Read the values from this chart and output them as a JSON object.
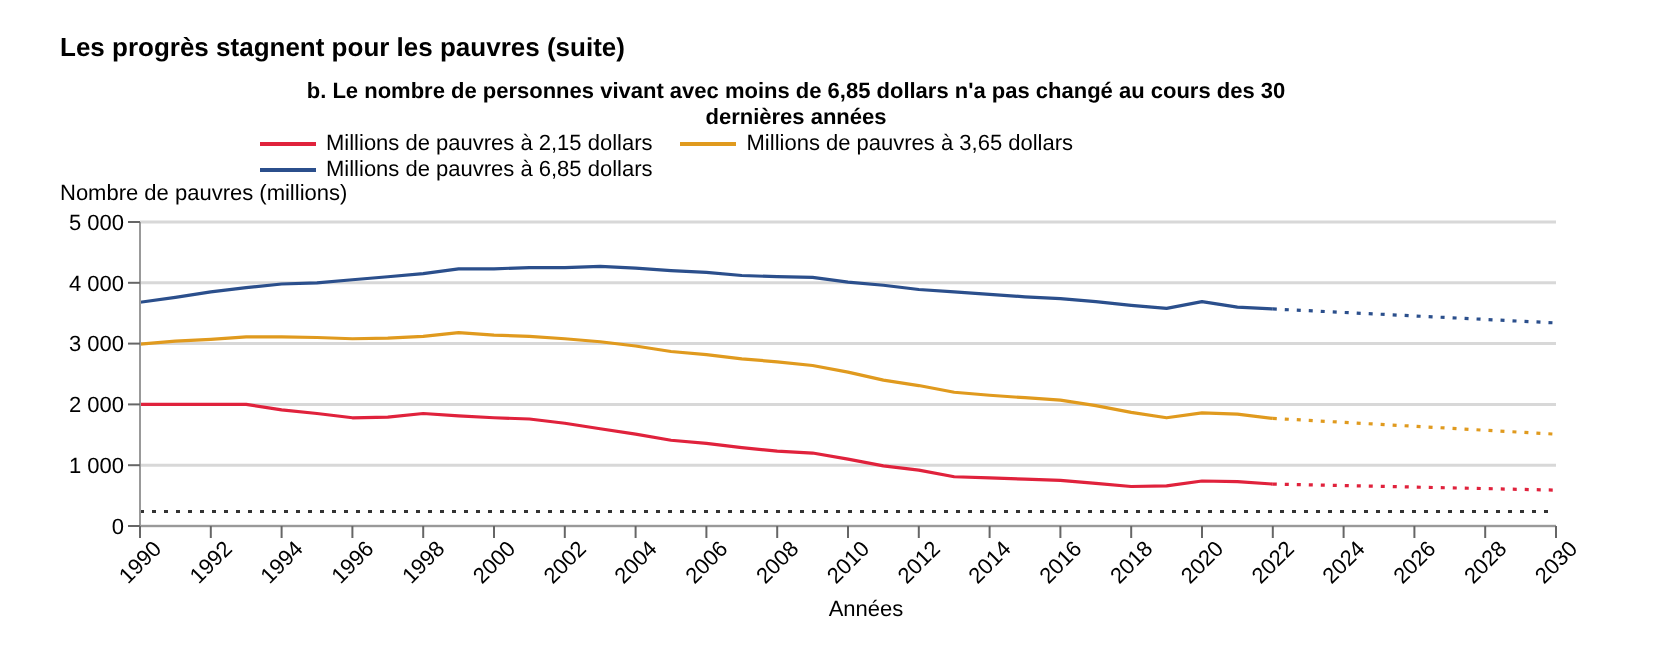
{
  "chart_data": {
    "type": "line",
    "title": "Les progrès stagnent pour les pauvres (suite)",
    "subtitle": "b. Le nombre de personnes vivant avec moins de 6,85 dollars n'a pas changé au cours des 30 dernières années",
    "xlabel": "Années",
    "ylabel": "Nombre de pauvres (millions)",
    "xlim": [
      1990,
      2030
    ],
    "xticks": [
      1990,
      1992,
      1994,
      1996,
      1998,
      2000,
      2002,
      2004,
      2006,
      2008,
      2010,
      2012,
      2014,
      2016,
      2018,
      2020,
      2022,
      2024,
      2026,
      2028,
      2030
    ],
    "ylim": [
      0,
      5000
    ],
    "yticks": [
      {
        "value": 0,
        "label": "0"
      },
      {
        "value": 1000,
        "label": "1 000"
      },
      {
        "value": 2000,
        "label": "2 000"
      },
      {
        "value": 3000,
        "label": "3 000"
      },
      {
        "value": 4000,
        "label": "4 000"
      },
      {
        "value": 5000,
        "label": "5 000"
      }
    ],
    "grid": "y",
    "legend": "top",
    "marker": "none",
    "ref_lines": [
      {
        "axis": "y",
        "value": 240,
        "color": "#333333",
        "line_style": "dotted"
      }
    ],
    "x": [
      1990,
      1991,
      1992,
      1993,
      1994,
      1995,
      1996,
      1997,
      1998,
      1999,
      2000,
      2001,
      2002,
      2003,
      2004,
      2005,
      2006,
      2007,
      2008,
      2009,
      2010,
      2011,
      2012,
      2013,
      2014,
      2015,
      2016,
      2017,
      2018,
      2019,
      2020,
      2021,
      2022,
      2030
    ],
    "series": [
      {
        "name": "Millions de pauvres à 2,15 dollars",
        "color": "#e0223c",
        "line_style": "solid",
        "values": [
          2000,
          2000,
          2000,
          2000,
          1910,
          1850,
          1780,
          1790,
          1850,
          1810,
          1780,
          1760,
          1690,
          1600,
          1510,
          1410,
          1360,
          1290,
          1230,
          1200,
          1100,
          990,
          920,
          810,
          790,
          770,
          750,
          700,
          650,
          660,
          740,
          730,
          690,
          null
        ]
      },
      {
        "name": "Millions de pauvres à 3,65 dollars",
        "color": "#e09a1e",
        "line_style": "solid",
        "values": [
          2990,
          3040,
          3070,
          3110,
          3110,
          3100,
          3080,
          3090,
          3120,
          3180,
          3140,
          3120,
          3080,
          3030,
          2960,
          2870,
          2820,
          2750,
          2700,
          2640,
          2530,
          2400,
          2310,
          2200,
          2150,
          2110,
          2070,
          1980,
          1870,
          1780,
          1860,
          1840,
          1770,
          null
        ]
      },
      {
        "name": "Millions de pauvres à 6,85 dollars",
        "color": "#2b4f8c",
        "line_style": "solid",
        "values": [
          3680,
          3760,
          3850,
          3920,
          3980,
          4000,
          4050,
          4100,
          4150,
          4230,
          4230,
          4250,
          4250,
          4270,
          4240,
          4200,
          4170,
          4120,
          4100,
          4090,
          4010,
          3960,
          3890,
          3850,
          3810,
          3770,
          3740,
          3690,
          3630,
          3580,
          3690,
          3600,
          3570,
          null
        ]
      },
      {
        "color": "#e0223c",
        "line_style": "dotted",
        "values": [
          null,
          null,
          null,
          null,
          null,
          null,
          null,
          null,
          null,
          null,
          null,
          null,
          null,
          null,
          null,
          null,
          null,
          null,
          null,
          null,
          null,
          null,
          null,
          null,
          null,
          null,
          null,
          null,
          null,
          null,
          null,
          null,
          690,
          590
        ]
      },
      {
        "color": "#e09a1e",
        "line_style": "dotted",
        "values": [
          null,
          null,
          null,
          null,
          null,
          null,
          null,
          null,
          null,
          null,
          null,
          null,
          null,
          null,
          null,
          null,
          null,
          null,
          null,
          null,
          null,
          null,
          null,
          null,
          null,
          null,
          null,
          null,
          null,
          null,
          null,
          null,
          1770,
          1510
        ]
      },
      {
        "color": "#2b4f8c",
        "line_style": "dotted",
        "values": [
          null,
          null,
          null,
          null,
          null,
          null,
          null,
          null,
          null,
          null,
          null,
          null,
          null,
          null,
          null,
          null,
          null,
          null,
          null,
          null,
          null,
          null,
          null,
          null,
          null,
          null,
          null,
          null,
          null,
          null,
          null,
          null,
          3570,
          3340
        ]
      }
    ]
  }
}
